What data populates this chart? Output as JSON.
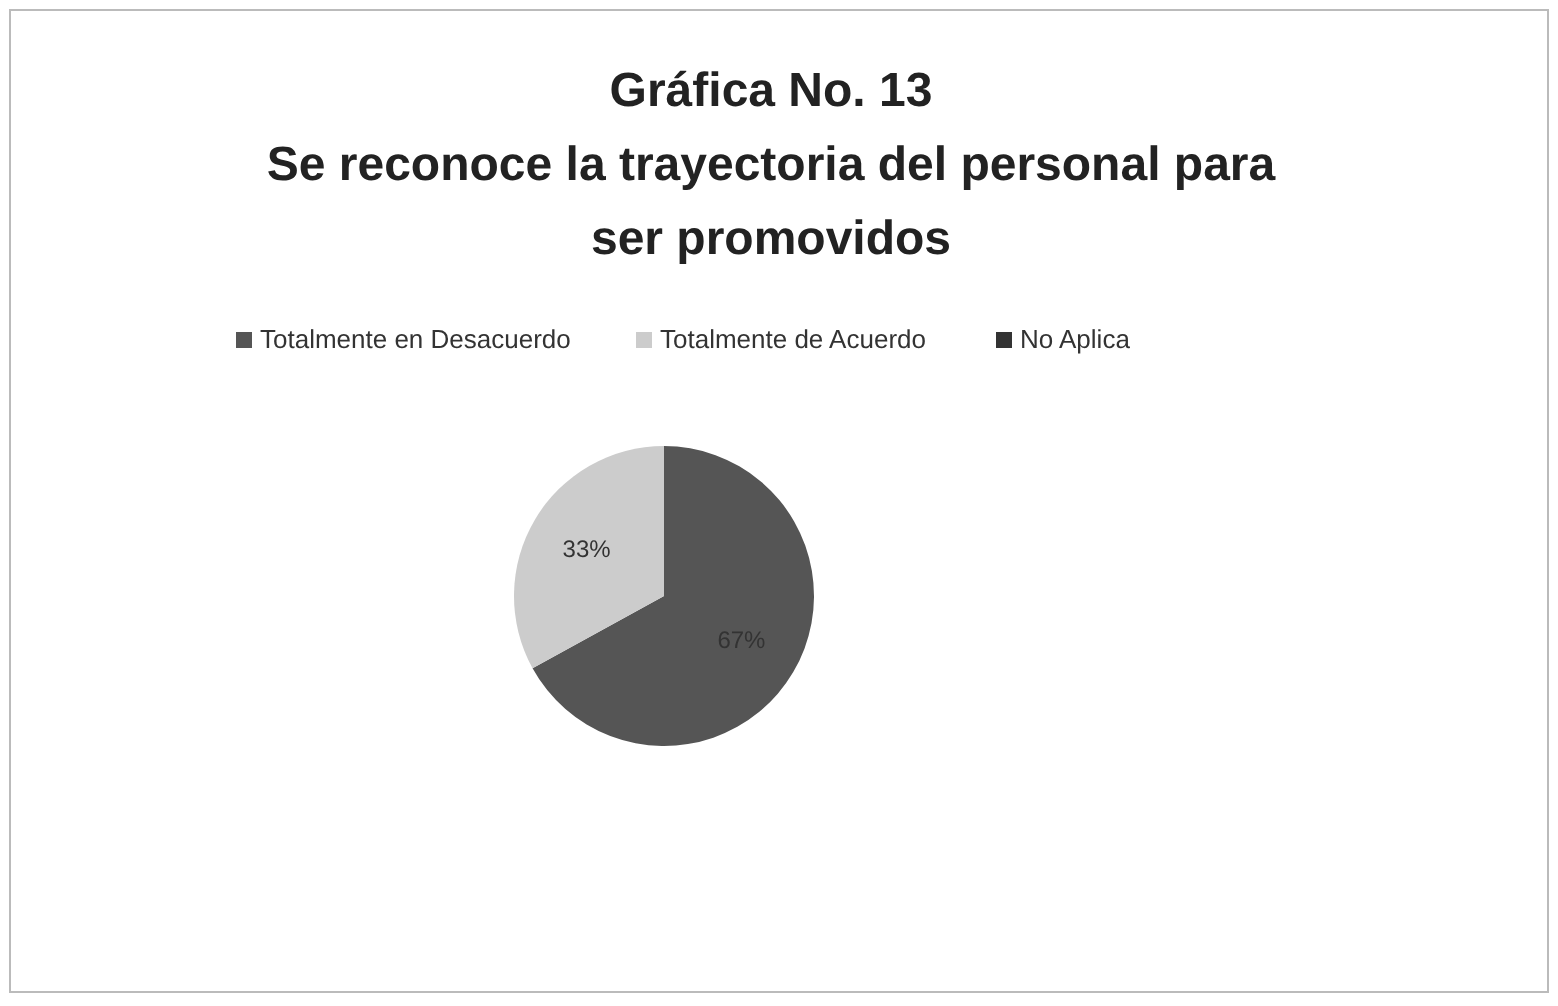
{
  "chart_data": {
    "type": "pie",
    "title": "Gráfica No. 13\nSe reconoce la trayectoria del personal  para\nser promovidos",
    "categories": [
      "Totalmente en Desacuerdo",
      "Totalmente de Acuerdo",
      "No Aplica"
    ],
    "values": [
      67,
      33,
      0
    ],
    "colors": [
      "#555555",
      "#cccccc",
      "#333333"
    ],
    "value_labels": [
      "67%",
      "33%",
      null
    ],
    "legend": "top"
  }
}
